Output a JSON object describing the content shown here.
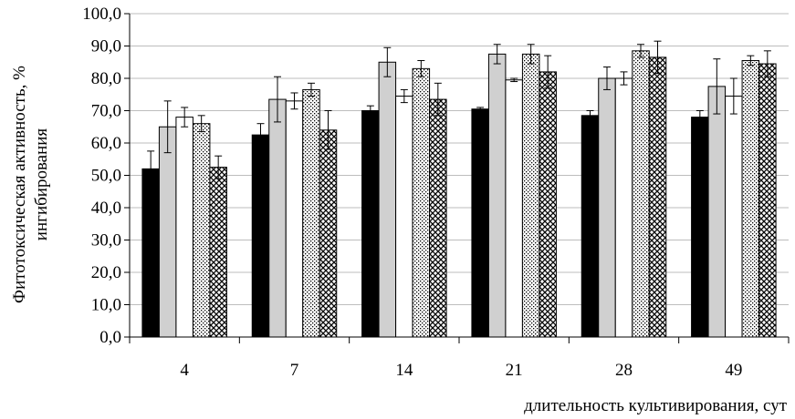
{
  "chart_data": {
    "type": "bar",
    "categories": [
      "4",
      "7",
      "14",
      "21",
      "28",
      "49"
    ],
    "xlabel": "длительность культивирования, сут",
    "ylabel_lines": [
      "Фитотоксическая активность, %",
      "ингибирования"
    ],
    "ylim": [
      0,
      100
    ],
    "yticks": [
      "0,0",
      "10,0",
      "20,0",
      "30,0",
      "40,0",
      "50,0",
      "60,0",
      "70,0",
      "80,0",
      "90,0",
      "100,0"
    ],
    "grid": true,
    "legend": "none",
    "series": [
      {
        "pattern": "solid-black",
        "values": [
          52.0,
          62.5,
          70.0,
          70.5,
          68.5,
          68.0
        ],
        "errors": [
          5.5,
          3.5,
          1.5,
          0.5,
          1.5,
          2.0
        ]
      },
      {
        "pattern": "solid-gray",
        "values": [
          65.0,
          73.5,
          85.0,
          87.5,
          80.0,
          77.5
        ],
        "errors": [
          8.0,
          7.0,
          4.5,
          3.0,
          3.5,
          8.5
        ]
      },
      {
        "pattern": "white",
        "values": [
          68.0,
          73.0,
          74.5,
          79.5,
          80.0,
          74.5
        ],
        "errors": [
          3.0,
          2.5,
          2.0,
          0.5,
          2.0,
          5.5
        ]
      },
      {
        "pattern": "dotted",
        "values": [
          66.0,
          76.5,
          83.0,
          87.5,
          88.5,
          85.5
        ],
        "errors": [
          2.5,
          2.0,
          2.5,
          3.0,
          2.0,
          1.5
        ]
      },
      {
        "pattern": "crosshatch",
        "values": [
          52.5,
          64.0,
          73.5,
          82.0,
          86.5,
          84.5
        ],
        "errors": [
          3.5,
          6.0,
          5.0,
          5.0,
          5.0,
          4.0
        ]
      }
    ],
    "colors": {
      "black": "#000000",
      "gray": "#d0d0d0",
      "white": "#ffffff",
      "grid": "#bdbdbd"
    }
  }
}
